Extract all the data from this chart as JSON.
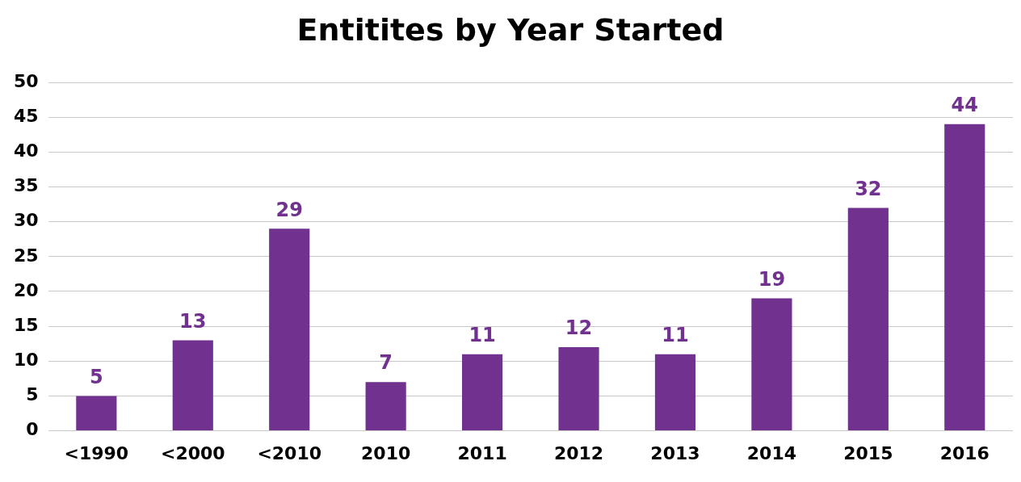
{
  "chart_data": {
    "type": "bar",
    "title": "Entitites by Year Started",
    "categories": [
      "<1990",
      "<2000",
      "<2010",
      "2010",
      "2011",
      "2012",
      "2013",
      "2014",
      "2015",
      "2016"
    ],
    "values": [
      5,
      13,
      29,
      7,
      11,
      12,
      11,
      19,
      32,
      44
    ],
    "color": "#71328f",
    "ylim": [
      0,
      50
    ],
    "yticks": [
      0,
      5,
      10,
      15,
      20,
      25,
      30,
      35,
      40,
      45,
      50
    ],
    "grid": "y",
    "data_labels": true,
    "legend": false
  }
}
